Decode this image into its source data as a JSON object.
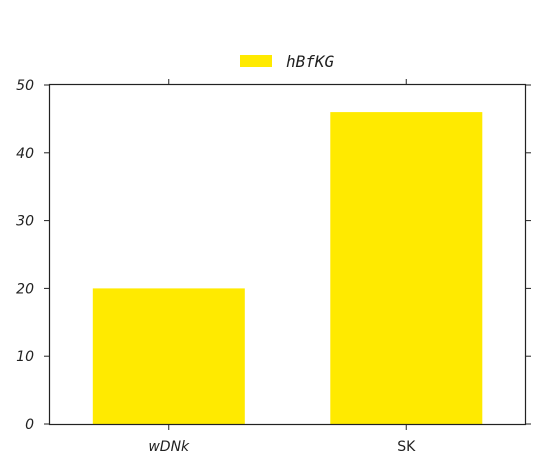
{
  "chart_data": {
    "type": "bar",
    "categories": [
      "wDNk",
      "SK"
    ],
    "category_italic": [
      true,
      false
    ],
    "series": [
      {
        "name": "hBfKG",
        "values": [
          20,
          46
        ],
        "color": "#ffea00"
      }
    ],
    "title": "",
    "xlabel": "",
    "ylabel": "",
    "ylim": [
      0,
      50
    ],
    "yticks": [
      0,
      10,
      20,
      30,
      40,
      50
    ],
    "grid": false,
    "legend_position": "top-center",
    "colors": {
      "bar": "#ffea00",
      "axis": "#222222",
      "background": "#ffffff"
    }
  }
}
